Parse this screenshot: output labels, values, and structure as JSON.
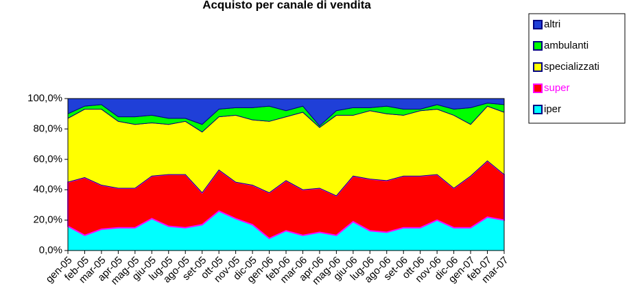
{
  "chart_data": {
    "type": "stacked_area",
    "title": "Acquisto per canale di vendita",
    "categories": [
      "gen-05",
      "feb-05",
      "mar-05",
      "apr-05",
      "mag-05",
      "giu-05",
      "lug-05",
      "ago-05",
      "set-05",
      "ott-05",
      "nov-05",
      "dic-05",
      "gen-06",
      "feb-06",
      "mar-06",
      "apr-06",
      "mag-06",
      "giu-06",
      "lug-06",
      "ago-06",
      "set-06",
      "ott-06",
      "nov-06",
      "dic-06",
      "gen-07",
      "feb-07",
      "mar-07"
    ],
    "series": [
      {
        "name": "iper",
        "color": "#00ffff",
        "values": [
          16,
          10,
          14,
          15,
          15,
          21,
          16,
          15,
          17,
          26,
          21,
          17,
          8,
          13,
          10,
          12,
          10,
          19,
          13,
          12,
          15,
          15,
          20,
          15,
          15,
          22,
          20
        ]
      },
      {
        "name": "super",
        "color": "#ff0000",
        "values": [
          29,
          38,
          29,
          26,
          26,
          28,
          34,
          35,
          21,
          27,
          24,
          26,
          30,
          33,
          30,
          29,
          26,
          30,
          34,
          34,
          34,
          34,
          30,
          26,
          34,
          37,
          30
        ]
      },
      {
        "name": "specializzati",
        "color": "#ffff00",
        "values": [
          42,
          45,
          50,
          44,
          42,
          35,
          33,
          35,
          40,
          35,
          44,
          43,
          47,
          42,
          51,
          40,
          53,
          40,
          45,
          44,
          40,
          43,
          43,
          48,
          34,
          36,
          41
        ]
      },
      {
        "name": "ambulanti",
        "color": "#00ff00",
        "values": [
          3,
          2,
          3,
          3,
          5,
          5,
          4,
          2,
          5,
          5,
          5,
          8,
          10,
          4,
          4,
          1,
          3,
          5,
          2,
          5,
          4,
          1,
          3,
          4,
          11,
          2,
          5
        ]
      },
      {
        "name": "altri",
        "color": "#1f3fd8",
        "values": [
          10,
          5,
          4,
          12,
          12,
          11,
          13,
          13,
          17,
          7,
          6,
          6,
          5,
          8,
          5,
          18,
          8,
          6,
          6,
          5,
          7,
          7,
          4,
          7,
          6,
          3,
          4
        ]
      }
    ],
    "ylim": [
      0,
      100
    ],
    "yticks": [
      {
        "value": 0,
        "label": "0,0%"
      },
      {
        "value": 20,
        "label": "20,0%"
      },
      {
        "value": 40,
        "label": "40,0%"
      },
      {
        "value": 60,
        "label": "60,0%"
      },
      {
        "value": 80,
        "label": "80,0%"
      },
      {
        "value": 100,
        "label": "100,0%"
      }
    ]
  }
}
